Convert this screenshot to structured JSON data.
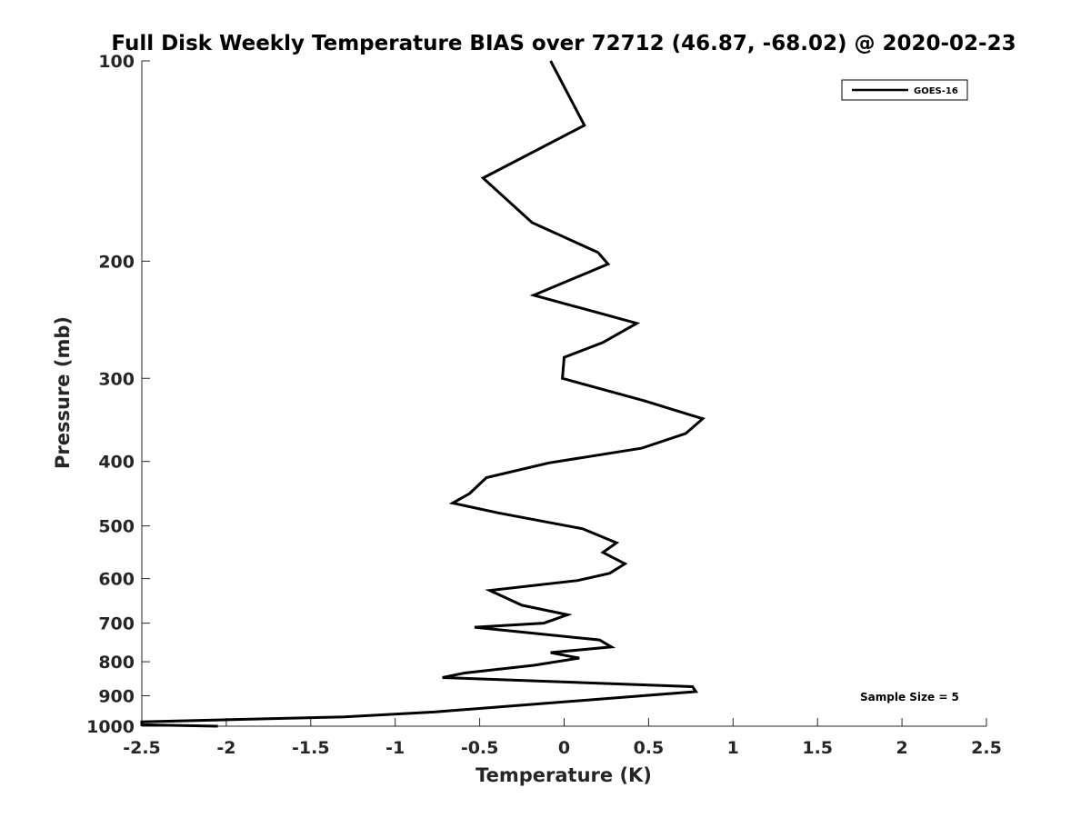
{
  "chart_data": {
    "type": "line",
    "title": "Full Disk Weekly Temperature BIAS over 72712 (46.87, -68.02) @ 2020-02-23",
    "xlabel": "Temperature (K)",
    "ylabel": "Pressure (mb)",
    "xlim": [
      -2.5,
      2.5
    ],
    "ylim": [
      1000,
      100
    ],
    "y_scale": "log",
    "y_reversed": true,
    "x_ticks": [
      "-2.5",
      "-2",
      "-1.5",
      "-1",
      "-0.5",
      "0",
      "0.5",
      "1",
      "1.5",
      "2",
      "2.5"
    ],
    "x_tick_values": [
      -2.5,
      -2,
      -1.5,
      -1,
      -0.5,
      0,
      0.5,
      1,
      1.5,
      2,
      2.5
    ],
    "y_ticks": [
      "100",
      "200",
      "300",
      "400",
      "500",
      "600",
      "700",
      "800",
      "900",
      "1000"
    ],
    "y_tick_values": [
      100,
      200,
      300,
      400,
      500,
      600,
      700,
      800,
      900,
      1000
    ],
    "grid": false,
    "legend_position": "top-right",
    "series": [
      {
        "name": "GOES-16",
        "color": "#000000",
        "points": [
          [
            -0.08,
            100
          ],
          [
            0.12,
            125
          ],
          [
            -0.48,
            150
          ],
          [
            -0.19,
            175
          ],
          [
            0.2,
            194
          ],
          [
            0.26,
            202
          ],
          [
            -0.18,
            225
          ],
          [
            0.43,
            248
          ],
          [
            0.23,
            265
          ],
          [
            0.0,
            279
          ],
          [
            -0.01,
            300
          ],
          [
            0.47,
            324
          ],
          [
            0.82,
            345
          ],
          [
            0.72,
            363
          ],
          [
            0.46,
            382
          ],
          [
            -0.09,
            402
          ],
          [
            -0.46,
            423
          ],
          [
            -0.56,
            447
          ],
          [
            -0.66,
            462
          ],
          [
            -0.39,
            478
          ],
          [
            0.11,
            505
          ],
          [
            0.31,
            530
          ],
          [
            0.23,
            548
          ],
          [
            0.36,
            570
          ],
          [
            0.27,
            589
          ],
          [
            0.08,
            604
          ],
          [
            -0.44,
            625
          ],
          [
            -0.25,
            658
          ],
          [
            0.02,
            680
          ],
          [
            -0.12,
            700
          ],
          [
            -0.53,
            710
          ],
          [
            0.21,
            742
          ],
          [
            0.28,
            760
          ],
          [
            -0.08,
            775
          ],
          [
            0.09,
            790
          ],
          [
            -0.18,
            810
          ],
          [
            -0.59,
            832
          ],
          [
            -0.72,
            845
          ],
          [
            0.76,
            872
          ],
          [
            0.78,
            887
          ],
          [
            -0.77,
            952
          ],
          [
            -1.3,
            968
          ],
          [
            -2.5,
            985
          ],
          [
            -2.5,
            995
          ],
          [
            -2.05,
            1000
          ]
        ]
      }
    ],
    "annotations": [
      "Sample Size = 5"
    ]
  }
}
